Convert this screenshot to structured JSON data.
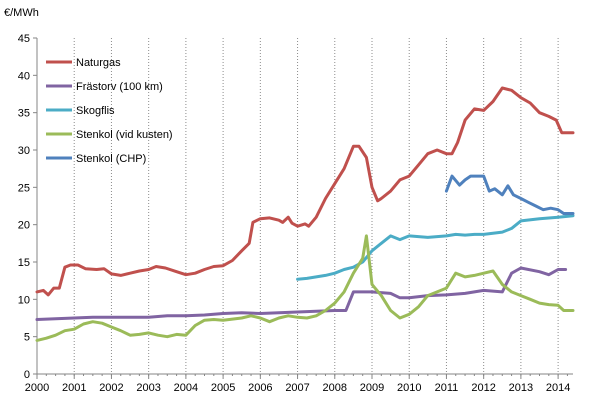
{
  "chart_data": {
    "type": "line",
    "ylabel": "€/MWh",
    "xlabel": "",
    "ylim": [
      0,
      45
    ],
    "xlim": [
      2000,
      2014.4
    ],
    "y_ticks": [
      "0",
      "5",
      "10",
      "15",
      "20",
      "25",
      "30",
      "35",
      "40",
      "45"
    ],
    "x_ticks": [
      "2000",
      "2001",
      "2002",
      "2003",
      "2004",
      "2005",
      "2006",
      "2007",
      "2008",
      "2009",
      "2010",
      "2011",
      "2012",
      "2013",
      "2014"
    ],
    "grid": "vertical dotted at year boundaries",
    "legend_position": "top-left",
    "series": [
      {
        "name": "Naturgas",
        "color": "#c0504d",
        "points": [
          [
            2000.0,
            11.0
          ],
          [
            2000.17,
            11.2
          ],
          [
            2000.3,
            10.6
          ],
          [
            2000.45,
            11.5
          ],
          [
            2000.6,
            11.5
          ],
          [
            2000.75,
            14.3
          ],
          [
            2000.9,
            14.6
          ],
          [
            2001.1,
            14.6
          ],
          [
            2001.3,
            14.1
          ],
          [
            2001.6,
            14.0
          ],
          [
            2001.8,
            14.1
          ],
          [
            2002.0,
            13.4
          ],
          [
            2002.25,
            13.2
          ],
          [
            2002.5,
            13.5
          ],
          [
            2002.75,
            13.8
          ],
          [
            2003.0,
            14.0
          ],
          [
            2003.2,
            14.4
          ],
          [
            2003.45,
            14.2
          ],
          [
            2003.75,
            13.7
          ],
          [
            2004.0,
            13.3
          ],
          [
            2004.25,
            13.5
          ],
          [
            2004.5,
            14.0
          ],
          [
            2004.75,
            14.4
          ],
          [
            2005.0,
            14.5
          ],
          [
            2005.25,
            15.2
          ],
          [
            2005.5,
            16.5
          ],
          [
            2005.7,
            17.5
          ],
          [
            2005.8,
            20.3
          ],
          [
            2006.0,
            20.8
          ],
          [
            2006.25,
            20.9
          ],
          [
            2006.5,
            20.6
          ],
          [
            2006.6,
            20.3
          ],
          [
            2006.75,
            21.0
          ],
          [
            2006.85,
            20.2
          ],
          [
            2007.0,
            19.8
          ],
          [
            2007.2,
            20.1
          ],
          [
            2007.3,
            19.8
          ],
          [
            2007.5,
            21.0
          ],
          [
            2007.75,
            23.5
          ],
          [
            2008.0,
            25.5
          ],
          [
            2008.25,
            27.5
          ],
          [
            2008.5,
            30.5
          ],
          [
            2008.65,
            30.5
          ],
          [
            2008.85,
            29.0
          ],
          [
            2009.0,
            25.0
          ],
          [
            2009.15,
            23.2
          ],
          [
            2009.25,
            23.5
          ],
          [
            2009.5,
            24.5
          ],
          [
            2009.75,
            26.0
          ],
          [
            2010.0,
            26.5
          ],
          [
            2010.25,
            28.0
          ],
          [
            2010.5,
            29.5
          ],
          [
            2010.75,
            30.0
          ],
          [
            2011.0,
            29.5
          ],
          [
            2011.15,
            29.5
          ],
          [
            2011.3,
            31.0
          ],
          [
            2011.5,
            34.0
          ],
          [
            2011.75,
            35.5
          ],
          [
            2012.0,
            35.3
          ],
          [
            2012.25,
            36.5
          ],
          [
            2012.5,
            38.3
          ],
          [
            2012.75,
            38.0
          ],
          [
            2013.0,
            37.0
          ],
          [
            2013.25,
            36.3
          ],
          [
            2013.5,
            35.0
          ],
          [
            2013.75,
            34.5
          ],
          [
            2013.95,
            34.0
          ],
          [
            2014.1,
            32.3
          ],
          [
            2014.4,
            32.3
          ]
        ]
      },
      {
        "name": "Frästorv (100 km)",
        "color": "#8064a2",
        "points": [
          [
            2000.0,
            7.3
          ],
          [
            2000.5,
            7.4
          ],
          [
            2001.0,
            7.5
          ],
          [
            2001.5,
            7.6
          ],
          [
            2002.0,
            7.6
          ],
          [
            2002.5,
            7.6
          ],
          [
            2003.0,
            7.6
          ],
          [
            2003.5,
            7.8
          ],
          [
            2004.0,
            7.8
          ],
          [
            2004.5,
            7.9
          ],
          [
            2005.0,
            8.1
          ],
          [
            2005.5,
            8.2
          ],
          [
            2006.0,
            8.1
          ],
          [
            2006.5,
            8.2
          ],
          [
            2007.0,
            8.3
          ],
          [
            2007.5,
            8.4
          ],
          [
            2008.0,
            8.5
          ],
          [
            2008.3,
            8.5
          ],
          [
            2008.5,
            11.0
          ],
          [
            2008.75,
            11.0
          ],
          [
            2009.0,
            11.0
          ],
          [
            2009.5,
            10.8
          ],
          [
            2009.75,
            10.2
          ],
          [
            2010.0,
            10.2
          ],
          [
            2010.5,
            10.5
          ],
          [
            2011.0,
            10.6
          ],
          [
            2011.5,
            10.8
          ],
          [
            2012.0,
            11.2
          ],
          [
            2012.5,
            11.0
          ],
          [
            2012.75,
            13.5
          ],
          [
            2013.0,
            14.2
          ],
          [
            2013.5,
            13.7
          ],
          [
            2013.75,
            13.3
          ],
          [
            2014.0,
            14.0
          ],
          [
            2014.2,
            14.0
          ]
        ]
      },
      {
        "name": "Skogflis",
        "color": "#4bacc6",
        "points": [
          [
            2007.0,
            12.7
          ],
          [
            2007.25,
            12.8
          ],
          [
            2007.5,
            13.0
          ],
          [
            2007.75,
            13.2
          ],
          [
            2008.0,
            13.5
          ],
          [
            2008.25,
            14.0
          ],
          [
            2008.5,
            14.3
          ],
          [
            2008.75,
            15.0
          ],
          [
            2009.0,
            16.5
          ],
          [
            2009.25,
            17.5
          ],
          [
            2009.5,
            18.5
          ],
          [
            2009.75,
            18.0
          ],
          [
            2010.0,
            18.5
          ],
          [
            2010.5,
            18.3
          ],
          [
            2011.0,
            18.5
          ],
          [
            2011.25,
            18.7
          ],
          [
            2011.5,
            18.6
          ],
          [
            2011.75,
            18.7
          ],
          [
            2012.0,
            18.7
          ],
          [
            2012.5,
            19.0
          ],
          [
            2012.75,
            19.5
          ],
          [
            2013.0,
            20.5
          ],
          [
            2013.5,
            20.8
          ],
          [
            2014.0,
            21.0
          ],
          [
            2014.4,
            21.2
          ]
        ]
      },
      {
        "name": "Stenkol (vid kusten)",
        "color": "#9bbb59",
        "points": [
          [
            2000.0,
            4.5
          ],
          [
            2000.25,
            4.8
          ],
          [
            2000.5,
            5.2
          ],
          [
            2000.75,
            5.8
          ],
          [
            2001.0,
            6.0
          ],
          [
            2001.25,
            6.7
          ],
          [
            2001.5,
            7.0
          ],
          [
            2001.75,
            6.8
          ],
          [
            2002.0,
            6.3
          ],
          [
            2002.25,
            5.8
          ],
          [
            2002.5,
            5.2
          ],
          [
            2002.75,
            5.3
          ],
          [
            2003.0,
            5.5
          ],
          [
            2003.25,
            5.2
          ],
          [
            2003.5,
            5.0
          ],
          [
            2003.75,
            5.3
          ],
          [
            2004.0,
            5.2
          ],
          [
            2004.25,
            6.5
          ],
          [
            2004.5,
            7.2
          ],
          [
            2004.75,
            7.3
          ],
          [
            2005.0,
            7.2
          ],
          [
            2005.5,
            7.5
          ],
          [
            2005.75,
            7.8
          ],
          [
            2006.0,
            7.5
          ],
          [
            2006.25,
            7.0
          ],
          [
            2006.5,
            7.5
          ],
          [
            2006.75,
            7.8
          ],
          [
            2007.0,
            7.6
          ],
          [
            2007.25,
            7.5
          ],
          [
            2007.5,
            7.8
          ],
          [
            2007.75,
            8.5
          ],
          [
            2008.0,
            9.5
          ],
          [
            2008.25,
            11.0
          ],
          [
            2008.5,
            13.5
          ],
          [
            2008.75,
            15.5
          ],
          [
            2008.85,
            18.5
          ],
          [
            2009.0,
            12.0
          ],
          [
            2009.25,
            10.5
          ],
          [
            2009.5,
            8.5
          ],
          [
            2009.75,
            7.5
          ],
          [
            2010.0,
            8.0
          ],
          [
            2010.25,
            9.0
          ],
          [
            2010.5,
            10.5
          ],
          [
            2010.75,
            11.0
          ],
          [
            2011.0,
            11.5
          ],
          [
            2011.25,
            13.5
          ],
          [
            2011.5,
            13.0
          ],
          [
            2011.75,
            13.2
          ],
          [
            2012.0,
            13.5
          ],
          [
            2012.25,
            13.8
          ],
          [
            2012.5,
            12.0
          ],
          [
            2012.75,
            11.0
          ],
          [
            2013.0,
            10.5
          ],
          [
            2013.25,
            10.0
          ],
          [
            2013.5,
            9.5
          ],
          [
            2013.75,
            9.3
          ],
          [
            2014.0,
            9.2
          ],
          [
            2014.15,
            8.5
          ],
          [
            2014.4,
            8.5
          ]
        ]
      },
      {
        "name": "Stenkol (CHP)",
        "color": "#4f81bd",
        "points": [
          [
            2011.0,
            24.5
          ],
          [
            2011.15,
            26.5
          ],
          [
            2011.35,
            25.3
          ],
          [
            2011.5,
            26.0
          ],
          [
            2011.65,
            26.5
          ],
          [
            2011.8,
            26.5
          ],
          [
            2012.0,
            26.5
          ],
          [
            2012.15,
            24.5
          ],
          [
            2012.3,
            24.8
          ],
          [
            2012.5,
            24.0
          ],
          [
            2012.65,
            25.2
          ],
          [
            2012.8,
            24.0
          ],
          [
            2013.0,
            23.5
          ],
          [
            2013.2,
            23.0
          ],
          [
            2013.4,
            22.5
          ],
          [
            2013.6,
            22.0
          ],
          [
            2013.8,
            22.2
          ],
          [
            2014.0,
            22.0
          ],
          [
            2014.15,
            21.5
          ],
          [
            2014.4,
            21.5
          ]
        ]
      }
    ]
  }
}
